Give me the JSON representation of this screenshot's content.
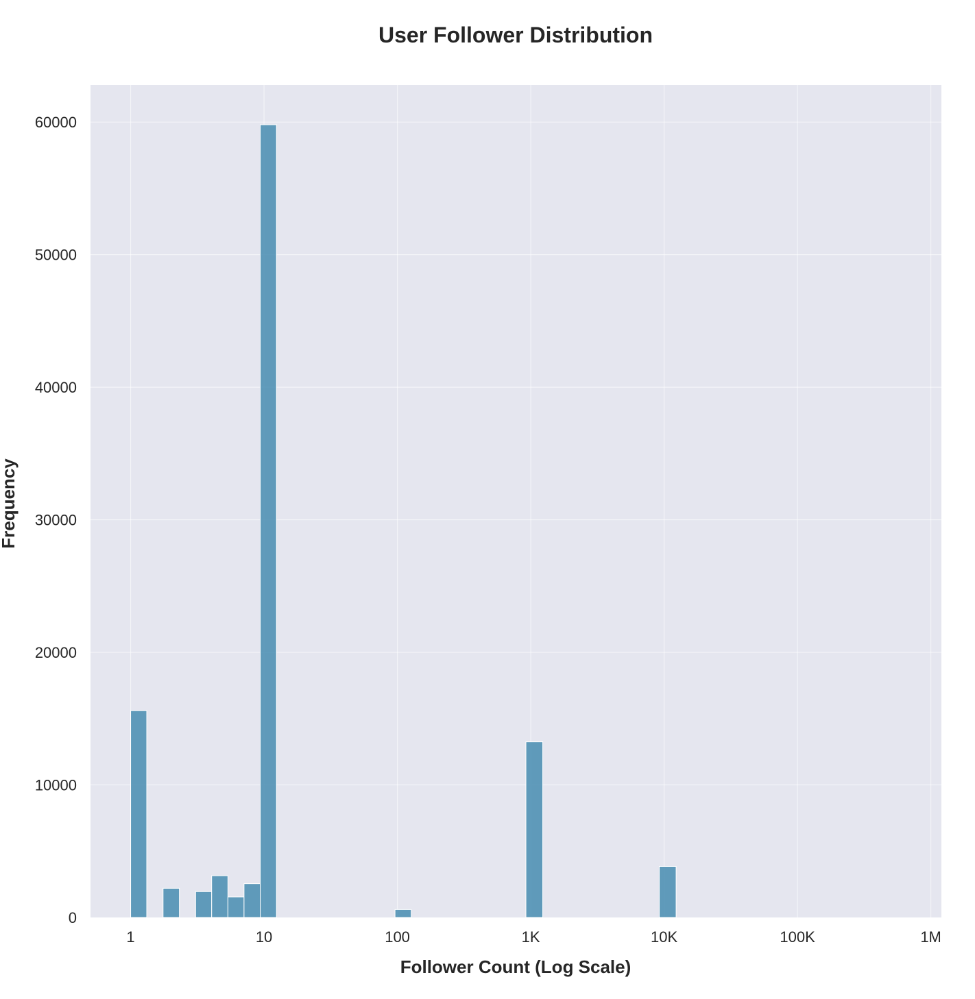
{
  "chart_data": {
    "type": "bar",
    "title": "User Follower Distribution",
    "xlabel": "Follower Count (Log Scale)",
    "ylabel": "Frequency",
    "x_scale": "log",
    "xlim": [
      0.5,
      1200000
    ],
    "ylim": [
      0,
      62800
    ],
    "x_ticks": [
      {
        "value": 1,
        "label": "1"
      },
      {
        "value": 10,
        "label": "10"
      },
      {
        "value": 100,
        "label": "100"
      },
      {
        "value": 1000,
        "label": "1K"
      },
      {
        "value": 10000,
        "label": "10K"
      },
      {
        "value": 100000,
        "label": "100K"
      },
      {
        "value": 1000000,
        "label": "1M"
      }
    ],
    "y_ticks": [
      {
        "value": 0,
        "label": "0"
      },
      {
        "value": 10000,
        "label": "10000"
      },
      {
        "value": 20000,
        "label": "20000"
      },
      {
        "value": 30000,
        "label": "30000"
      },
      {
        "value": 40000,
        "label": "40000"
      },
      {
        "value": 50000,
        "label": "50000"
      },
      {
        "value": 60000,
        "label": "60000"
      }
    ],
    "bins": [
      {
        "x0": 1.0,
        "x1": 1.32,
        "count": 15600
      },
      {
        "x0": 1.75,
        "x1": 2.32,
        "count": 2200
      },
      {
        "x0": 3.07,
        "x1": 4.05,
        "count": 1950
      },
      {
        "x0": 4.05,
        "x1": 5.36,
        "count": 3150
      },
      {
        "x0": 5.36,
        "x1": 7.08,
        "count": 1550
      },
      {
        "x0": 7.08,
        "x1": 9.37,
        "count": 2550
      },
      {
        "x0": 9.37,
        "x1": 12.4,
        "count": 59800
      },
      {
        "x0": 96.0,
        "x1": 127.0,
        "count": 600
      },
      {
        "x0": 920,
        "x1": 1230,
        "count": 13250
      },
      {
        "x0": 9200,
        "x1": 12300,
        "count": 3850
      }
    ],
    "grid": true,
    "colors": {
      "bar": "#4c8fb3",
      "plot_background": "#e5e6ef",
      "grid": "#ffffff",
      "text": "#262626"
    }
  }
}
